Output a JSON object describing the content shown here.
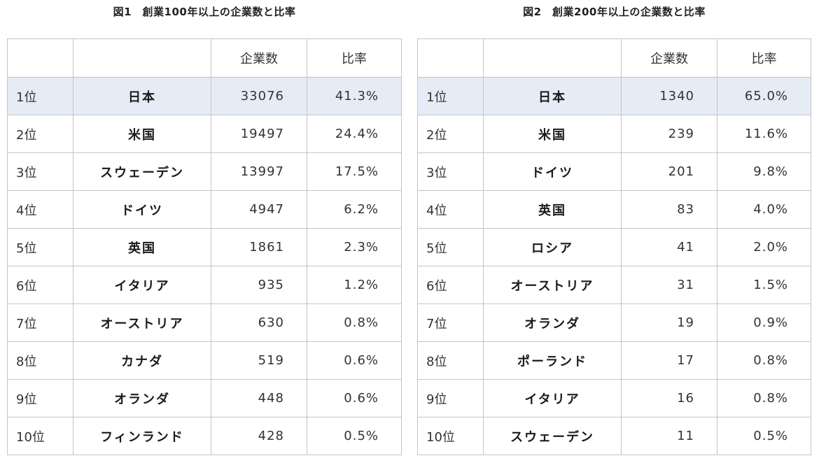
{
  "tables": [
    {
      "title": "図1　創業100年以上の企業数と比率",
      "headers": [
        "",
        "",
        "企業数",
        "比率"
      ],
      "rows": [
        {
          "rank": "1位",
          "country": "日本",
          "count": "33076",
          "ratio": "41.3%"
        },
        {
          "rank": "2位",
          "country": "米国",
          "count": "19497",
          "ratio": "24.4%"
        },
        {
          "rank": "3位",
          "country": "スウェーデン",
          "count": "13997",
          "ratio": "17.5%"
        },
        {
          "rank": "4位",
          "country": "ドイツ",
          "count": "4947",
          "ratio": "6.2%"
        },
        {
          "rank": "5位",
          "country": "英国",
          "count": "1861",
          "ratio": "2.3%"
        },
        {
          "rank": "6位",
          "country": "イタリア",
          "count": "935",
          "ratio": "1.2%"
        },
        {
          "rank": "7位",
          "country": "オーストリア",
          "count": "630",
          "ratio": "0.8%"
        },
        {
          "rank": "8位",
          "country": "カナダ",
          "count": "519",
          "ratio": "0.6%"
        },
        {
          "rank": "9位",
          "country": "オランダ",
          "count": "448",
          "ratio": "0.6%"
        },
        {
          "rank": "10位",
          "country": "フィンランド",
          "count": "428",
          "ratio": "0.5%"
        }
      ]
    },
    {
      "title": "図2　創業200年以上の企業数と比率",
      "headers": [
        "",
        "",
        "企業数",
        "比率"
      ],
      "rows": [
        {
          "rank": "1位",
          "country": "日本",
          "count": "1340",
          "ratio": "65.0%"
        },
        {
          "rank": "2位",
          "country": "米国",
          "count": "239",
          "ratio": "11.6%"
        },
        {
          "rank": "3位",
          "country": "ドイツ",
          "count": "201",
          "ratio": "9.8%"
        },
        {
          "rank": "4位",
          "country": "英国",
          "count": "83",
          "ratio": "4.0%"
        },
        {
          "rank": "5位",
          "country": "ロシア",
          "count": "41",
          "ratio": "2.0%"
        },
        {
          "rank": "6位",
          "country": "オーストリア",
          "count": "31",
          "ratio": "1.5%"
        },
        {
          "rank": "7位",
          "country": "オランダ",
          "count": "19",
          "ratio": "0.9%"
        },
        {
          "rank": "8位",
          "country": "ポーランド",
          "count": "17",
          "ratio": "0.8%"
        },
        {
          "rank": "9位",
          "country": "イタリア",
          "count": "16",
          "ratio": "0.8%"
        },
        {
          "rank": "10位",
          "country": "スウェーデン",
          "count": "11",
          "ratio": "0.5%"
        }
      ]
    }
  ],
  "colors": {
    "highlight_row": "#e6ecf6",
    "border": "#c4c4c4"
  }
}
